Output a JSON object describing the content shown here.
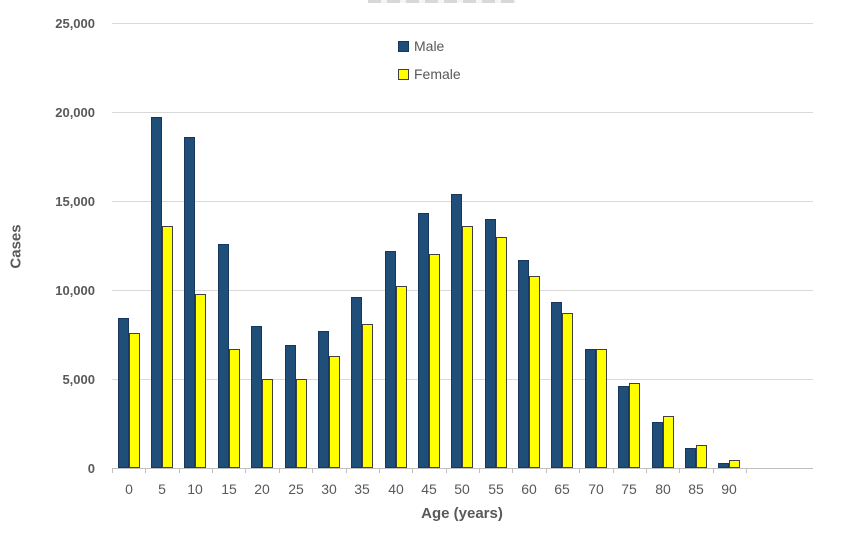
{
  "chart_data": {
    "type": "bar",
    "ylabel": "Cases",
    "xlabel": "Age (years)",
    "categories": [
      "0",
      "5",
      "10",
      "15",
      "20",
      "25",
      "30",
      "35",
      "40",
      "45",
      "50",
      "55",
      "60",
      "65",
      "70",
      "75",
      "80",
      "85",
      "90"
    ],
    "series": [
      {
        "name": "Male",
        "color": "#1f4e79",
        "values": [
          8400,
          19700,
          18600,
          12600,
          8000,
          6900,
          7700,
          9600,
          12200,
          14300,
          15400,
          14000,
          11700,
          9300,
          6700,
          4600,
          2600,
          1100,
          300
        ]
      },
      {
        "name": "Female",
        "color": "#ffff00",
        "values": [
          7600,
          13600,
          9800,
          6700,
          5000,
          5000,
          6300,
          8100,
          10200,
          12000,
          13600,
          13000,
          10800,
          8700,
          6700,
          4800,
          2900,
          1300,
          450
        ]
      }
    ],
    "ylim": [
      0,
      25000
    ],
    "ytick_step": 5000,
    "ytick_labels": [
      "0",
      "5,000",
      "10,000",
      "15,000",
      "20,000",
      "25,000"
    ],
    "grid": true,
    "legend_position": "top-center",
    "colors": {
      "male": "#1f4e79",
      "female": "#ffff00",
      "female_border": "#404040",
      "gridline": "#d9d9d9",
      "axis_line": "#bfbfbf",
      "text": "#595959"
    }
  }
}
